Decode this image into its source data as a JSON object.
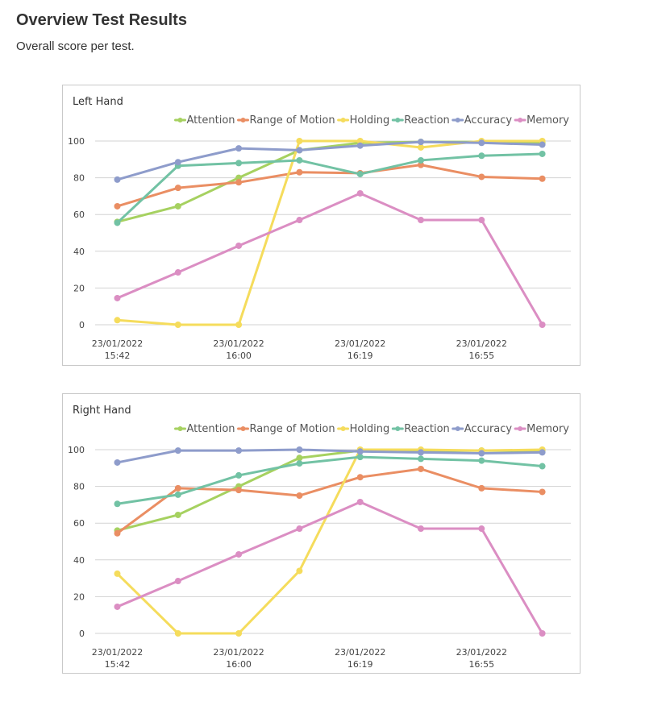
{
  "page": {
    "title": "Overview Test Results",
    "subtitle": "Overall score per test."
  },
  "colors": {
    "Attention": "#a6d160",
    "Range of Motion": "#ea8e63",
    "Holding": "#f5dc5c",
    "Reaction": "#72c2a4",
    "Accuracy": "#8e9ccb",
    "Memory": "#db8ec3",
    "grid": "#d3d3d3"
  },
  "chart_data": [
    {
      "type": "line",
      "title": "Left Hand",
      "xlabel": "",
      "ylabel": "",
      "ylim": [
        0,
        100
      ],
      "y_ticks": [
        0,
        20,
        40,
        60,
        80,
        100
      ],
      "x_tick_labels": [
        [
          "23/01/2022",
          "15:42"
        ],
        [
          "23/01/2022",
          "16:00"
        ],
        [
          "23/01/2022",
          "16:19"
        ],
        [
          "23/01/2022",
          "16:55"
        ]
      ],
      "grid": true,
      "legend": "top-right",
      "series": [
        {
          "name": "Attention",
          "values": [
            56,
            64.5,
            80,
            95,
            99,
            99.5,
            99.5,
            99
          ]
        },
        {
          "name": "Range of Motion",
          "values": [
            64.5,
            74.5,
            77.5,
            83,
            82.5,
            87,
            80.5,
            79.5
          ]
        },
        {
          "name": "Holding",
          "values": [
            2.5,
            0,
            0,
            100,
            100,
            96.5,
            100,
            100
          ]
        },
        {
          "name": "Reaction",
          "values": [
            55.5,
            86.5,
            88,
            89.5,
            82,
            89.5,
            92,
            93
          ]
        },
        {
          "name": "Accuracy",
          "values": [
            79,
            88.5,
            96,
            95,
            97.5,
            99.5,
            99,
            98
          ]
        },
        {
          "name": "Memory",
          "values": [
            14.5,
            28.5,
            43,
            57,
            71.5,
            57,
            57,
            0
          ]
        }
      ]
    },
    {
      "type": "line",
      "title": "Right Hand",
      "xlabel": "",
      "ylabel": "",
      "ylim": [
        0,
        100
      ],
      "y_ticks": [
        0,
        20,
        40,
        60,
        80,
        100
      ],
      "x_tick_labels": [
        [
          "23/01/2022",
          "15:42"
        ],
        [
          "23/01/2022",
          "16:00"
        ],
        [
          "23/01/2022",
          "16:19"
        ],
        [
          "23/01/2022",
          "16:55"
        ]
      ],
      "grid": true,
      "legend": "top-right",
      "series": [
        {
          "name": "Attention",
          "values": [
            56,
            64.5,
            80,
            95.5,
            99.5,
            99.5,
            99.5,
            99.5
          ]
        },
        {
          "name": "Range of Motion",
          "values": [
            54.5,
            79,
            78,
            75,
            85,
            89.5,
            79,
            77
          ]
        },
        {
          "name": "Holding",
          "values": [
            32.5,
            0,
            0,
            34,
            100,
            100,
            99.5,
            100
          ]
        },
        {
          "name": "Reaction",
          "values": [
            70.5,
            75.5,
            86,
            92.5,
            96,
            95,
            94,
            91
          ]
        },
        {
          "name": "Accuracy",
          "values": [
            93,
            99.5,
            99.5,
            100,
            99,
            98.5,
            98,
            98.5
          ]
        },
        {
          "name": "Memory",
          "values": [
            14.5,
            28.5,
            43,
            57,
            71.5,
            57,
            57,
            0
          ]
        }
      ]
    }
  ]
}
